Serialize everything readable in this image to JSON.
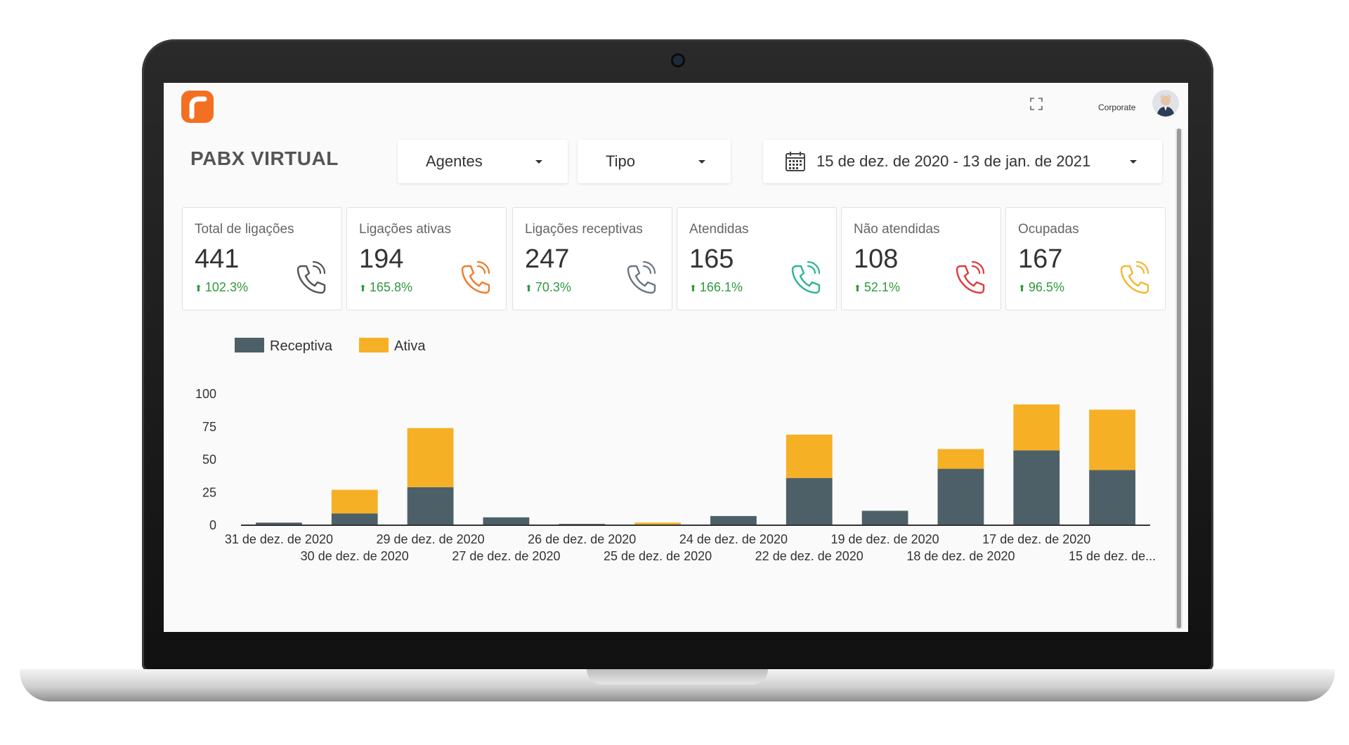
{
  "app": {
    "title": "PABX VIRTUAL",
    "user_label": "Corporate"
  },
  "filters": {
    "agents_label": "Agentes",
    "type_label": "Tipo",
    "date_range": "15 de dez. de 2020 - 13 de jan. de 2021"
  },
  "icons": {
    "logo": "logo-icon",
    "expand": "expand-icon",
    "calendar": "calendar-icon",
    "caret": "chevron-down-icon",
    "phone": "phone-icon"
  },
  "cards": [
    {
      "label": "Total de ligações",
      "value": "441",
      "delta": "102.3%",
      "icon_color": "#555555"
    },
    {
      "label": "Ligações ativas",
      "value": "194",
      "delta": "165.8%",
      "icon_color": "#f07a28"
    },
    {
      "label": "Ligações receptivas",
      "value": "247",
      "delta": "70.3%",
      "icon_color": "#6b7780"
    },
    {
      "label": "Atendidas",
      "value": "165",
      "delta": "166.1%",
      "icon_color": "#2bb596"
    },
    {
      "label": "Não atendidas",
      "value": "108",
      "delta": "52.1%",
      "icon_color": "#e0393e"
    },
    {
      "label": "Ocupadas",
      "value": "167",
      "delta": "96.5%",
      "icon_color": "#f4b731"
    }
  ],
  "delta_color": "#2e9a3e",
  "chart_data": {
    "type": "bar",
    "stacked": true,
    "categories": [
      "31 de dez. de 2020",
      "30 de dez. de 2020",
      "29 de dez. de 2020",
      "27 de dez. de 2020",
      "26 de dez. de 2020",
      "25 de dez. de 2020",
      "24 de dez. de 2020",
      "22 de dez. de 2020",
      "19 de dez. de 2020",
      "18 de dez. de 2020",
      "17 de dez. de 2020",
      "15 de dez. de..."
    ],
    "series": [
      {
        "name": "Receptiva",
        "color": "#4d6068",
        "values": [
          2,
          9,
          29,
          6,
          1,
          0,
          7,
          36,
          11,
          43,
          57,
          42
        ]
      },
      {
        "name": "Ativa",
        "color": "#f6b026",
        "values": [
          0,
          18,
          45,
          0,
          0,
          2,
          0,
          33,
          0,
          15,
          35,
          46
        ]
      }
    ],
    "yticks": [
      "100",
      "75",
      "50",
      "25",
      "0"
    ],
    "ylim": [
      0,
      100
    ],
    "legend": "top-left",
    "grid": false
  }
}
